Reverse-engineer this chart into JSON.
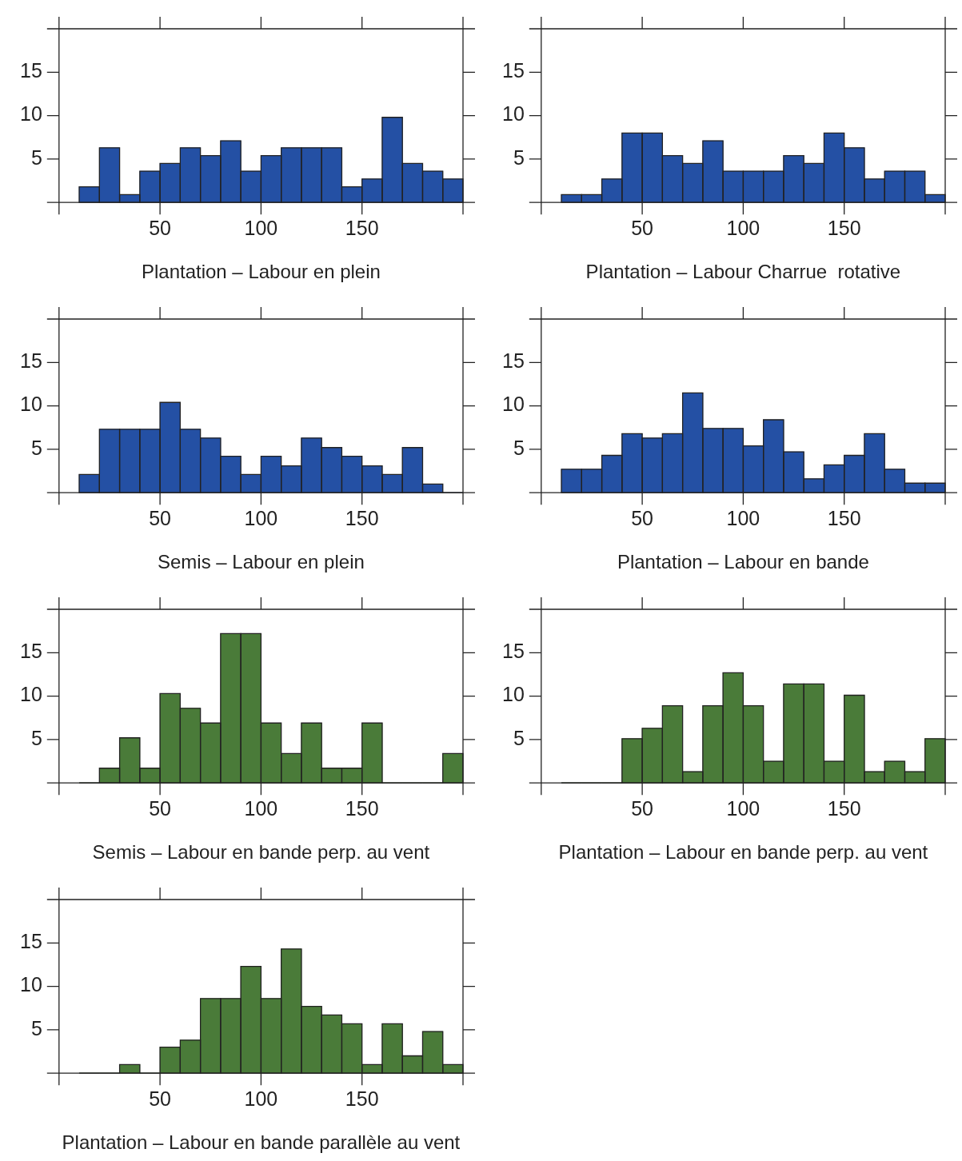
{
  "chart_data": [
    {
      "type": "histogram",
      "xlabel": "Plantation – Labour en plein",
      "bins": [
        10,
        20,
        30,
        40,
        50,
        60,
        70,
        80,
        90,
        100,
        110,
        120,
        130,
        140,
        150,
        160,
        170,
        180,
        190,
        200
      ],
      "values": [
        1.8,
        6.3,
        0.9,
        3.6,
        4.5,
        6.3,
        5.4,
        7.1,
        3.6,
        5.4,
        6.3,
        6.3,
        6.3,
        1.8,
        2.7,
        9.8,
        4.5,
        3.6,
        2.7
      ],
      "color": "#2450a4",
      "xlim": [
        0,
        200
      ],
      "xticks": [
        50,
        100,
        150
      ],
      "ylim": [
        0,
        20
      ],
      "yticks": [
        5,
        10,
        15
      ]
    },
    {
      "type": "histogram",
      "xlabel": "Plantation – Labour Charrue  rotative",
      "bins": [
        10,
        20,
        30,
        40,
        50,
        60,
        70,
        80,
        90,
        100,
        110,
        120,
        130,
        140,
        150,
        160,
        170,
        180,
        190,
        200
      ],
      "values": [
        0.9,
        0.9,
        2.7,
        8,
        8,
        5.4,
        4.5,
        7.1,
        3.6,
        3.6,
        3.6,
        5.4,
        4.5,
        8,
        6.3,
        2.7,
        3.6,
        3.6,
        0.9
      ],
      "color": "#2450a4",
      "xlim": [
        0,
        200
      ],
      "xticks": [
        50,
        100,
        150
      ],
      "ylim": [
        0,
        20
      ],
      "yticks": [
        5,
        10,
        15
      ]
    },
    {
      "type": "histogram",
      "xlabel": "Semis – Labour en plein",
      "bins": [
        10,
        20,
        30,
        40,
        50,
        60,
        70,
        80,
        90,
        100,
        110,
        120,
        130,
        140,
        150,
        160,
        170,
        180,
        190,
        200
      ],
      "values": [
        2.1,
        7.3,
        7.3,
        7.3,
        10.4,
        7.3,
        6.3,
        4.2,
        2.1,
        4.2,
        3.1,
        6.3,
        5.2,
        4.2,
        3.1,
        2.1,
        5.2,
        1,
        0
      ],
      "color": "#2450a4",
      "xlim": [
        0,
        200
      ],
      "xticks": [
        50,
        100,
        150
      ],
      "ylim": [
        0,
        20
      ],
      "yticks": [
        5,
        10,
        15
      ]
    },
    {
      "type": "histogram",
      "xlabel": "Plantation – Labour en bande",
      "bins": [
        10,
        20,
        30,
        40,
        50,
        60,
        70,
        80,
        90,
        100,
        110,
        120,
        130,
        140,
        150,
        160,
        170,
        180,
        190,
        200
      ],
      "values": [
        2.7,
        2.7,
        4.3,
        6.8,
        6.3,
        6.8,
        11.5,
        7.4,
        7.4,
        5.4,
        8.4,
        4.7,
        1.6,
        3.2,
        4.3,
        6.8,
        2.7,
        1.1,
        1.1
      ],
      "color": "#2450a4",
      "xlim": [
        0,
        200
      ],
      "xticks": [
        50,
        100,
        150
      ],
      "ylim": [
        0,
        20
      ],
      "yticks": [
        5,
        10,
        15
      ]
    },
    {
      "type": "histogram",
      "xlabel": "Semis – Labour en bande perp. au vent",
      "bins": [
        10,
        20,
        30,
        40,
        50,
        60,
        70,
        80,
        90,
        100,
        110,
        120,
        130,
        140,
        150,
        160,
        170,
        180,
        190,
        200
      ],
      "values": [
        0,
        1.7,
        5.2,
        1.7,
        10.3,
        8.6,
        6.9,
        17.2,
        17.2,
        6.9,
        3.4,
        6.9,
        1.7,
        1.7,
        6.9,
        0,
        0,
        0,
        3.4
      ],
      "color": "#4a7b39",
      "xlim": [
        0,
        200
      ],
      "xticks": [
        50,
        100,
        150
      ],
      "ylim": [
        0,
        20
      ],
      "yticks": [
        5,
        10,
        15
      ]
    },
    {
      "type": "histogram",
      "xlabel": "Plantation – Labour en bande perp. au vent",
      "bins": [
        10,
        20,
        30,
        40,
        50,
        60,
        70,
        80,
        90,
        100,
        110,
        120,
        130,
        140,
        150,
        160,
        170,
        180,
        190,
        200
      ],
      "values": [
        0,
        0,
        0,
        5.1,
        6.3,
        8.9,
        1.3,
        8.9,
        12.7,
        8.9,
        2.5,
        11.4,
        11.4,
        2.5,
        10.1,
        1.3,
        2.5,
        1.3,
        5.1
      ],
      "color": "#4a7b39",
      "xlim": [
        0,
        200
      ],
      "xticks": [
        50,
        100,
        150
      ],
      "ylim": [
        0,
        20
      ],
      "yticks": [
        5,
        10,
        15
      ]
    },
    {
      "type": "histogram",
      "xlabel": "Plantation – Labour en bande parallèle au vent",
      "bins": [
        10,
        20,
        30,
        40,
        50,
        60,
        70,
        80,
        90,
        100,
        110,
        120,
        130,
        140,
        150,
        160,
        170,
        180,
        190,
        200
      ],
      "values": [
        0,
        0,
        1,
        0,
        3,
        3.8,
        8.6,
        8.6,
        12.3,
        8.6,
        14.3,
        7.7,
        6.7,
        5.7,
        1,
        5.7,
        2,
        4.8,
        1
      ],
      "color": "#4a7b39",
      "xlim": [
        0,
        200
      ],
      "xticks": [
        50,
        100,
        150
      ],
      "ylim": [
        0,
        20
      ],
      "yticks": [
        5,
        10,
        15
      ]
    }
  ]
}
